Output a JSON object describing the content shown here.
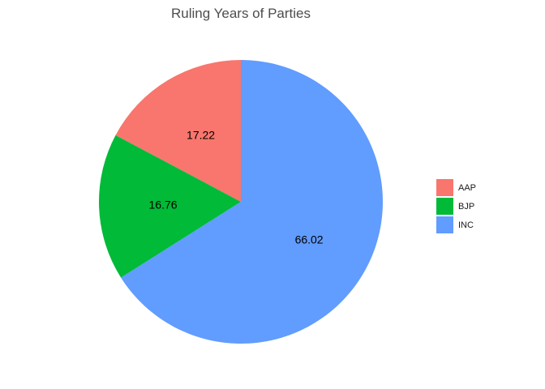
{
  "chart_data": {
    "type": "pie",
    "title": "Ruling Years of Parties",
    "categories": [
      "AAP",
      "BJP",
      "INC"
    ],
    "values": [
      17.22,
      16.76,
      66.02
    ],
    "labels": [
      "17.22",
      "16.76",
      "66.02"
    ],
    "colors": [
      "#F8766D",
      "#00BA38",
      "#619CFF"
    ],
    "legend_position": "right",
    "legend": [
      {
        "label": "AAP",
        "color": "#F8766D"
      },
      {
        "label": "BJP",
        "color": "#00BA38"
      },
      {
        "label": "INC",
        "color": "#619CFF"
      }
    ]
  }
}
